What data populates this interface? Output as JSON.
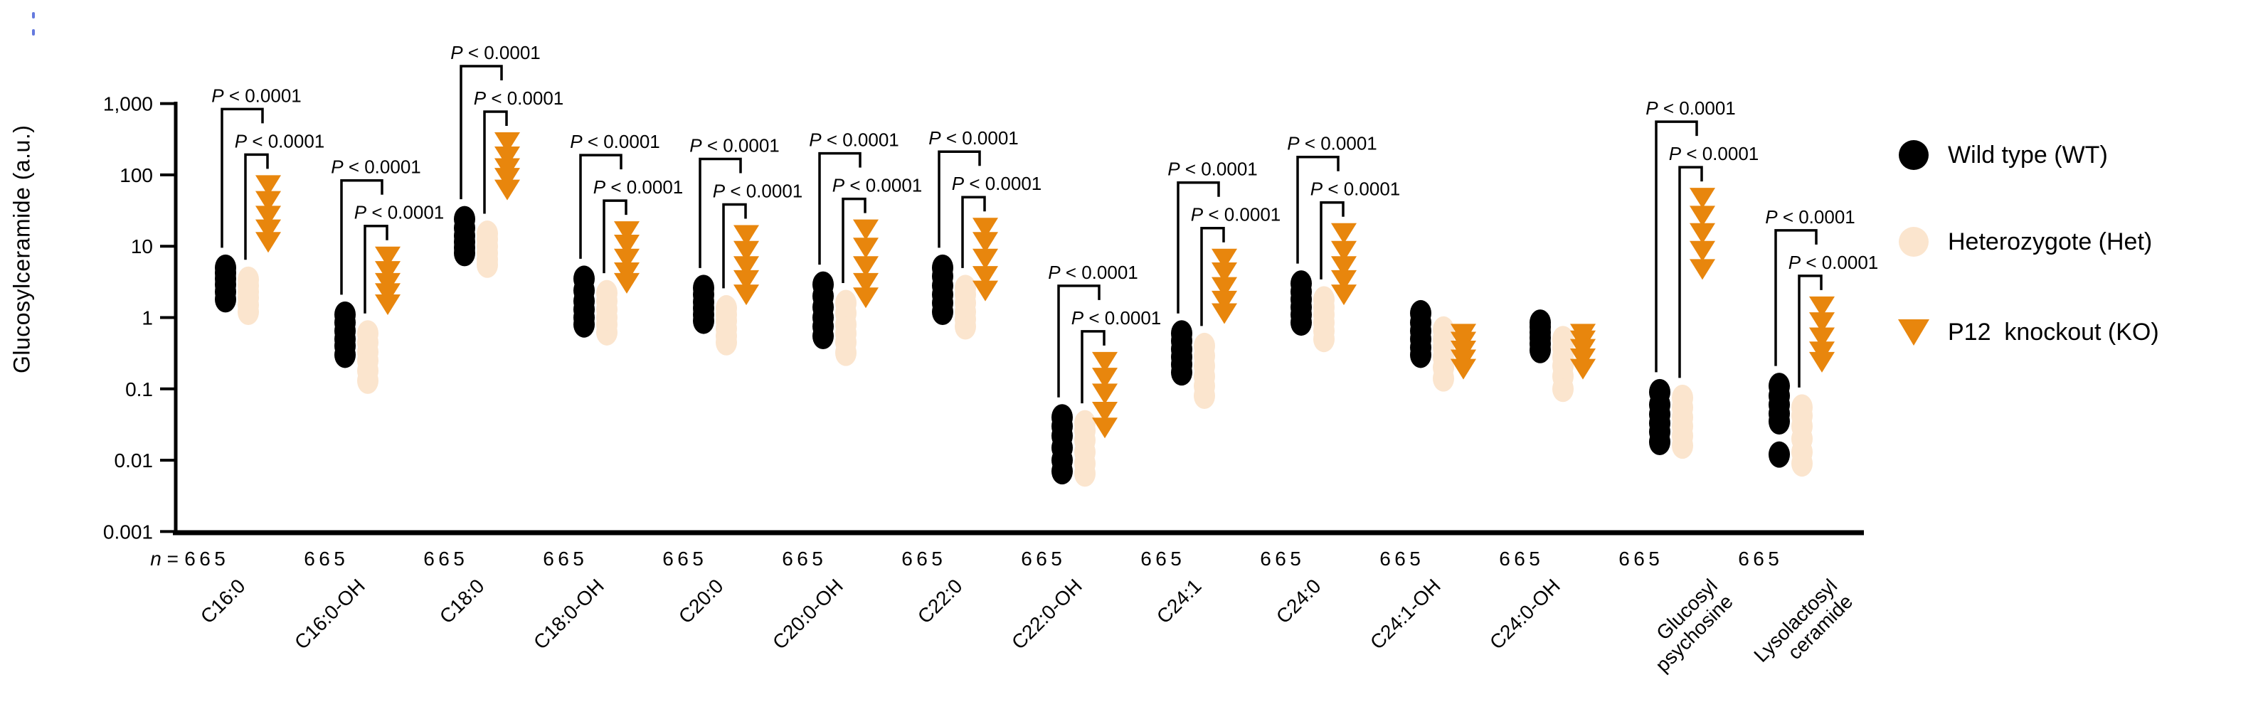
{
  "figure": {
    "n_prefix": "n = ",
    "sig_label": "P < 0.0001",
    "colors": {
      "wt": "#000000",
      "het": "#FBE5CE",
      "ko": "#E8860D",
      "axis": "#000000"
    },
    "legend": [
      {
        "group": "WT",
        "label": "Wild type (WT)",
        "marker": "circle",
        "color": "#000000"
      },
      {
        "group": "Het",
        "label": "Heterozygote (Het)",
        "marker": "circle",
        "color": "#FBE5CE"
      },
      {
        "group": "KO",
        "label": "P12  knockout (KO)",
        "marker": "triangle-down",
        "color": "#E8860D"
      }
    ]
  },
  "chart_data": {
    "type": "scatter",
    "y_scale": "log",
    "title": "",
    "xlabel": "",
    "ylabel": "Glucosylceramide (a.u.)",
    "ylim": [
      0.001,
      1000
    ],
    "ytick_labels": [
      "1,000",
      "100",
      "10",
      "1",
      "0.1",
      "0.01",
      "0.001"
    ],
    "ytick_values": [
      1000,
      100,
      10,
      1,
      0.1,
      0.01,
      0.001
    ],
    "grid": false,
    "legend_position": "right",
    "series_names": [
      "Wild type (WT)",
      "Heterozygote (Het)",
      "P12 knockout (KO)"
    ],
    "categories": [
      {
        "name": "C16:0",
        "label_lines": [
          "C16:0"
        ],
        "n": [
          6,
          6,
          5
        ],
        "sig": true,
        "wt": [
          1.8,
          2.3,
          2.9,
          3.5,
          4.2,
          5.0
        ],
        "het": [
          1.2,
          1.5,
          1.9,
          2.3,
          2.8,
          3.4
        ],
        "ko": [
          12,
          18,
          28,
          45,
          75
        ]
      },
      {
        "name": "C16:0-OH",
        "label_lines": [
          "C16:0-OH"
        ],
        "n": [
          6,
          6,
          5
        ],
        "sig": true,
        "wt": [
          0.3,
          0.4,
          0.5,
          0.65,
          0.85,
          1.1
        ],
        "het": [
          0.13,
          0.18,
          0.25,
          0.33,
          0.45,
          0.6
        ],
        "ko": [
          1.6,
          2.3,
          3.2,
          4.7,
          7.5
        ]
      },
      {
        "name": "C18:0",
        "label_lines": [
          "C18:0"
        ],
        "n": [
          6,
          6,
          5
        ],
        "sig": true,
        "wt": [
          8,
          9.5,
          11.5,
          14,
          18,
          24
        ],
        "het": [
          5.5,
          6.5,
          8,
          10,
          12.5,
          15
        ],
        "ko": [
          65,
          95,
          130,
          190,
          300
        ]
      },
      {
        "name": "C18:0-OH",
        "label_lines": [
          "C18:0-OH"
        ],
        "n": [
          6,
          6,
          5
        ],
        "sig": true,
        "wt": [
          0.8,
          1.0,
          1.3,
          1.7,
          2.4,
          3.5
        ],
        "het": [
          0.62,
          0.8,
          1.0,
          1.3,
          1.7,
          2.2
        ],
        "ko": [
          3.2,
          4.5,
          7,
          11,
          17
        ]
      },
      {
        "name": "C20:0",
        "label_lines": [
          "C20:0"
        ],
        "n": [
          6,
          6,
          5
        ],
        "sig": true,
        "wt": [
          0.9,
          1.1,
          1.35,
          1.65,
          2.1,
          2.6
        ],
        "het": [
          0.45,
          0.55,
          0.7,
          0.9,
          1.1,
          1.35
        ],
        "ko": [
          2.2,
          3.5,
          5.5,
          9,
          15
        ]
      },
      {
        "name": "C20:0-OH",
        "label_lines": [
          "C20:0-OH"
        ],
        "n": [
          6,
          6,
          5
        ],
        "sig": true,
        "wt": [
          0.55,
          0.75,
          1.0,
          1.4,
          2.0,
          2.9
        ],
        "het": [
          0.32,
          0.45,
          0.6,
          0.8,
          1.15,
          1.6
        ],
        "ko": [
          2.0,
          3.2,
          5.5,
          10,
          18
        ]
      },
      {
        "name": "C22:0",
        "label_lines": [
          "C22:0"
        ],
        "n": [
          6,
          6,
          5
        ],
        "sig": true,
        "wt": [
          1.2,
          1.6,
          2.1,
          2.8,
          3.8,
          5.0
        ],
        "het": [
          0.75,
          0.95,
          1.2,
          1.6,
          2.1,
          2.6
        ],
        "ko": [
          2.5,
          4,
          7,
          12,
          19
        ]
      },
      {
        "name": "C22:0-OH",
        "label_lines": [
          "C22:0-OH"
        ],
        "n": [
          6,
          6,
          5
        ],
        "sig": true,
        "wt": [
          0.007,
          0.01,
          0.015,
          0.022,
          0.03,
          0.04
        ],
        "het": [
          0.0065,
          0.009,
          0.013,
          0.019,
          0.026,
          0.033
        ],
        "ko": [
          0.03,
          0.05,
          0.09,
          0.15,
          0.25
        ]
      },
      {
        "name": "C24:1",
        "label_lines": [
          "C24:1"
        ],
        "n": [
          6,
          6,
          5
        ],
        "sig": true,
        "wt": [
          0.17,
          0.22,
          0.28,
          0.36,
          0.47,
          0.6
        ],
        "het": [
          0.08,
          0.11,
          0.15,
          0.21,
          0.29,
          0.4
        ],
        "ko": [
          1.2,
          1.8,
          2.8,
          4.5,
          7
        ]
      },
      {
        "name": "C24:0",
        "label_lines": [
          "C24:0"
        ],
        "n": [
          6,
          6,
          5
        ],
        "sig": true,
        "wt": [
          0.85,
          1.1,
          1.4,
          1.8,
          2.3,
          3.0
        ],
        "het": [
          0.5,
          0.65,
          0.85,
          1.1,
          1.4,
          1.8
        ],
        "ko": [
          2.2,
          3.5,
          5.5,
          9,
          16
        ]
      },
      {
        "name": "C24:1-OH",
        "label_lines": [
          "C24:1-OH"
        ],
        "n": [
          6,
          6,
          5
        ],
        "sig": false,
        "wt": [
          0.3,
          0.38,
          0.5,
          0.65,
          0.85,
          1.15
        ],
        "het": [
          0.14,
          0.2,
          0.28,
          0.38,
          0.5,
          0.68
        ],
        "ko": [
          0.2,
          0.27,
          0.36,
          0.48,
          0.62
        ]
      },
      {
        "name": "C24:0-OH",
        "label_lines": [
          "C24:0-OH"
        ],
        "n": [
          6,
          6,
          5
        ],
        "sig": false,
        "wt": [
          0.35,
          0.43,
          0.52,
          0.62,
          0.74,
          0.85
        ],
        "het": [
          0.1,
          0.15,
          0.21,
          0.28,
          0.38,
          0.5
        ],
        "ko": [
          0.2,
          0.28,
          0.38,
          0.5,
          0.62
        ]
      },
      {
        "name": "Glucosylpsychosine",
        "label_lines": [
          "Glucosyl",
          "psychosine"
        ],
        "n": [
          6,
          6,
          5
        ],
        "sig": true,
        "wt": [
          0.018,
          0.025,
          0.033,
          0.044,
          0.06,
          0.09
        ],
        "het": [
          0.016,
          0.022,
          0.03,
          0.04,
          0.055,
          0.075
        ],
        "ko": [
          5,
          9,
          16,
          28,
          50
        ]
      },
      {
        "name": "Lysolactosylceramide",
        "label_lines": [
          "Lysolactosyl",
          "ceramide"
        ],
        "n": [
          6,
          6,
          5
        ],
        "sig": true,
        "wt": [
          0.012,
          0.035,
          0.045,
          0.06,
          0.08,
          0.11
        ],
        "het": [
          0.009,
          0.013,
          0.02,
          0.03,
          0.042,
          0.055
        ],
        "ko": [
          0.25,
          0.35,
          0.55,
          0.9,
          1.5
        ]
      }
    ]
  }
}
